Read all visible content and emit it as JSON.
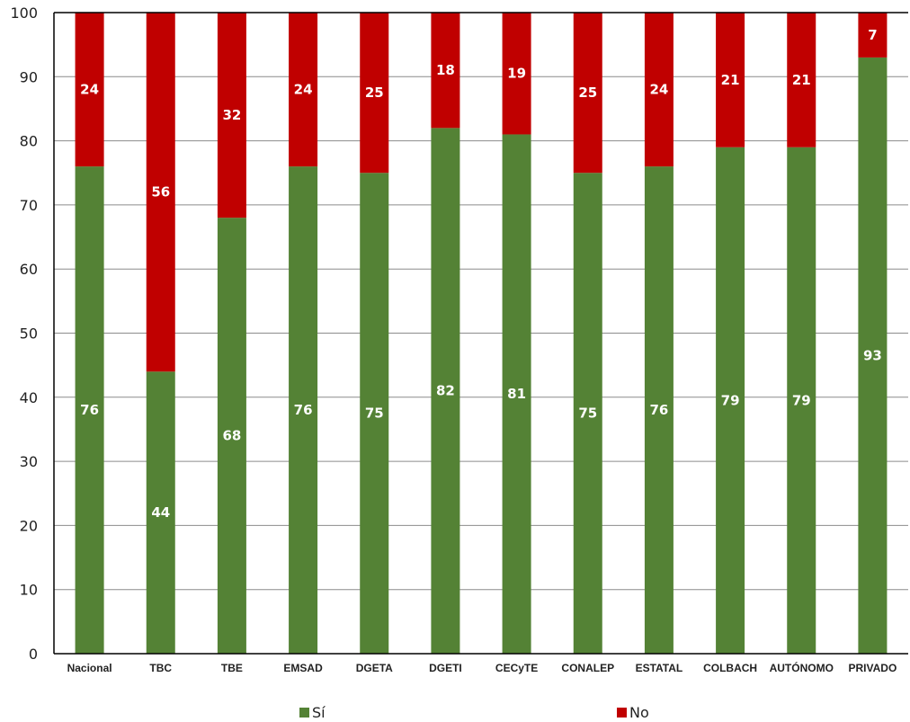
{
  "chart_data": {
    "type": "bar",
    "stacked": true,
    "categories": [
      "Nacional",
      "TBC",
      "TBE",
      "EMSAD",
      "DGETA",
      "DGETI",
      "CECyTE",
      "CONALEP",
      "ESTATAL",
      "COLBACH",
      "AUTÓNOMO",
      "PRIVADO"
    ],
    "series": [
      {
        "name": "Sí",
        "color": "#548235",
        "values": [
          76,
          44,
          68,
          76,
          75,
          82,
          81,
          75,
          76,
          79,
          79,
          93
        ]
      },
      {
        "name": "No",
        "color": "#c00000",
        "values": [
          24,
          56,
          32,
          24,
          25,
          18,
          19,
          25,
          24,
          21,
          21,
          7
        ]
      }
    ],
    "ylim": [
      0,
      100
    ],
    "yticks": [
      0,
      10,
      20,
      30,
      40,
      50,
      60,
      70,
      80,
      90,
      100
    ],
    "grid": true,
    "legend_position": "bottom",
    "title": "",
    "xlabel": "",
    "ylabel": ""
  }
}
